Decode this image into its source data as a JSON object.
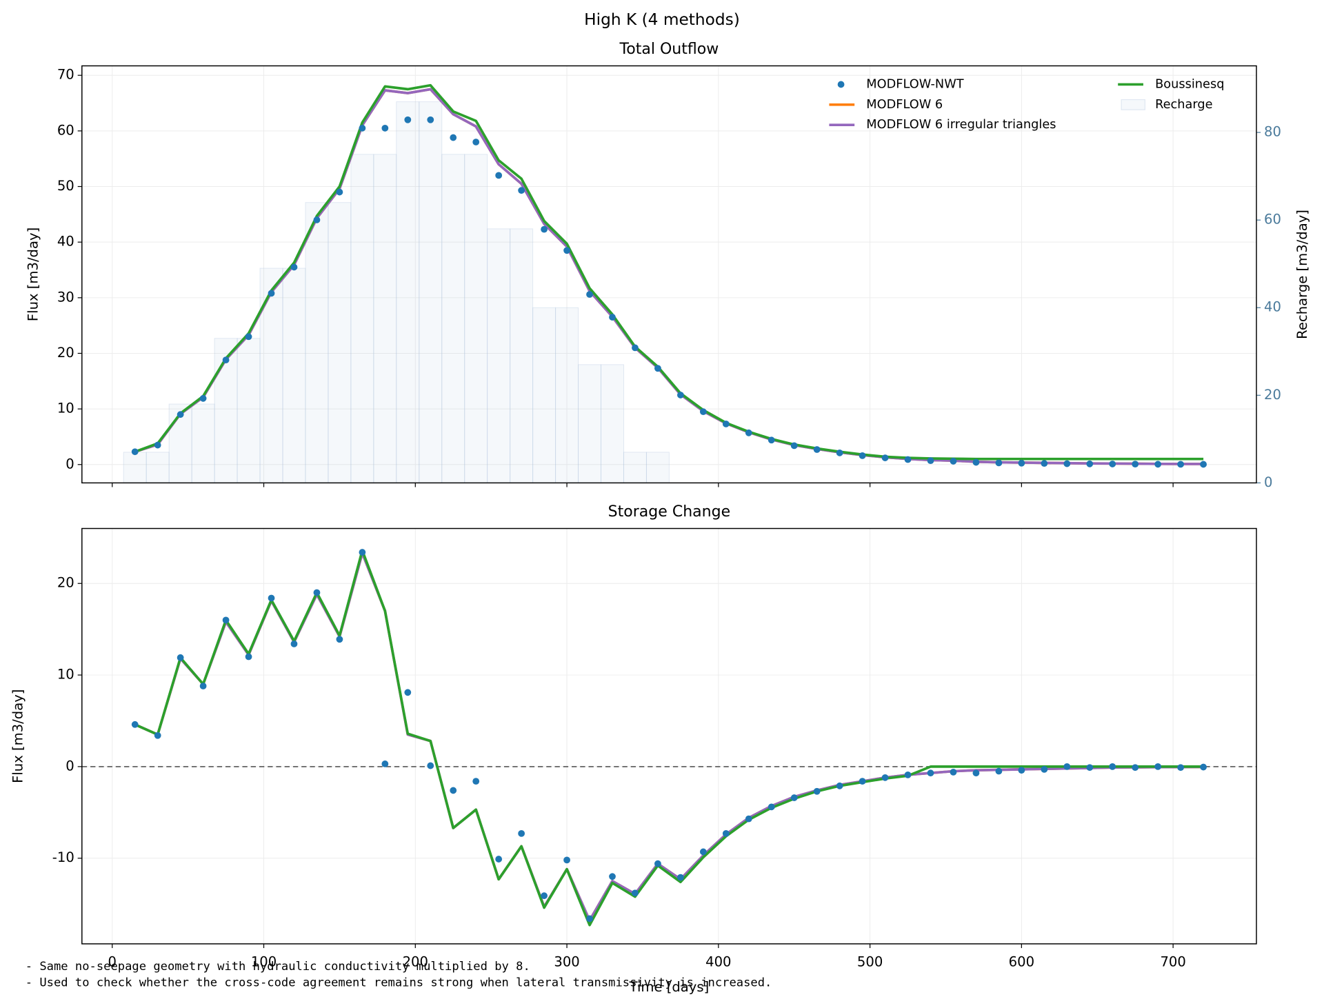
{
  "title": "High K (4 methods)",
  "notes": [
    "- Same no-seepage geometry with hydraulic conductivity multiplied by 8.",
    "- Used to check whether the cross-code agreement remains strong when lateral transmissivity is increased."
  ],
  "chart_data": [
    {
      "type": "line",
      "title": "Total Outflow",
      "ylabel": "Flux [m3/day]",
      "y2label": "Recharge [m3/day]",
      "x": [
        15,
        30,
        45,
        60,
        75,
        90,
        105,
        120,
        135,
        150,
        165,
        180,
        195,
        210,
        225,
        240,
        255,
        270,
        285,
        300,
        315,
        330,
        345,
        360,
        375,
        390,
        405,
        420,
        435,
        450,
        465,
        480,
        495,
        510,
        525,
        540,
        555,
        570,
        585,
        600,
        615,
        630,
        645,
        660,
        675,
        690,
        705,
        720
      ],
      "xlim": [
        -20,
        755
      ],
      "xticks": [
        0,
        100,
        200,
        300,
        400,
        500,
        600,
        700
      ],
      "show_xtick_labels": false,
      "ylim": [
        -3.3,
        71.7
      ],
      "yticks": [
        0,
        10,
        20,
        30,
        40,
        50,
        60,
        70
      ],
      "y2lim": [
        0,
        95.2
      ],
      "y2ticks": [
        0,
        20,
        40,
        60,
        80
      ],
      "y2color": "#4a7a9b",
      "grid": true,
      "legend": "upper right",
      "series": [
        {
          "name": "MODFLOW-NWT",
          "color": "#1f77b4",
          "style": "markers",
          "values": [
            2.3,
            3.5,
            9,
            11.9,
            18.8,
            23,
            30.8,
            35.5,
            44,
            49,
            60.5,
            60.5,
            62,
            62,
            58.8,
            58,
            52,
            49.3,
            42.3,
            38.5,
            30.6,
            26.5,
            21,
            17.3,
            12.5,
            9.5,
            7.3,
            5.7,
            4.4,
            3.4,
            2.7,
            2.1,
            1.6,
            1.2,
            0.9,
            0.7,
            0.6,
            0.4,
            0.3,
            0.25,
            0.2,
            0.15,
            0.12,
            0.1,
            0.08,
            0.06,
            0.05,
            0.04
          ]
        },
        {
          "name": "MODFLOW 6",
          "color": "#ff7f0e",
          "style": "line",
          "values": [
            2.3,
            3.6,
            9.1,
            12.1,
            18.9,
            23.3,
            31,
            35.9,
            44.3,
            49.6,
            61,
            67.3,
            66.8,
            67.5,
            63,
            60.8,
            54,
            50.5,
            43.3,
            39.2,
            31.2,
            26.6,
            21,
            17.4,
            12.6,
            9.6,
            7.4,
            5.8,
            4.5,
            3.5,
            2.8,
            2.2,
            1.7,
            1.3,
            1,
            0.8,
            0.7,
            0.5,
            0.4,
            0.35,
            0.3,
            0.25,
            0.2,
            0.18,
            0.15,
            0.12,
            0.1,
            0.1
          ]
        },
        {
          "name": "MODFLOW 6 irregular triangles",
          "color": "#9467bd",
          "style": "line",
          "values": [
            2.3,
            3.6,
            9.1,
            12.1,
            18.9,
            23.3,
            31,
            35.9,
            44.3,
            49.6,
            61,
            67.3,
            66.8,
            67.5,
            63,
            60.8,
            54,
            50.5,
            43.3,
            39.2,
            31.2,
            26.6,
            21,
            17.4,
            12.6,
            9.6,
            7.4,
            5.8,
            4.5,
            3.5,
            2.8,
            2.2,
            1.7,
            1.3,
            1,
            0.8,
            0.7,
            0.5,
            0.4,
            0.35,
            0.3,
            0.25,
            0.2,
            0.18,
            0.15,
            0.12,
            0.1,
            0.1
          ]
        },
        {
          "name": "Boussinesq",
          "color": "#2ca02c",
          "style": "line",
          "values": [
            2.3,
            3.8,
            9.2,
            12.3,
            19.1,
            23.6,
            31.3,
            36.3,
            44.7,
            50,
            61.5,
            68,
            67.5,
            68.2,
            63.5,
            61.8,
            54.7,
            51.4,
            43.8,
            39.7,
            31.7,
            27,
            21.2,
            17.6,
            12.8,
            9.8,
            7.5,
            5.9,
            4.6,
            3.6,
            2.9,
            2.3,
            1.8,
            1.4,
            1.2,
            1.1,
            1.05,
            1,
            1,
            1,
            1,
            1,
            1,
            1,
            1,
            1,
            1,
            1
          ]
        },
        {
          "name": "Recharge",
          "color": "#b0c4de",
          "style": "bar",
          "axis": "y2",
          "values": [
            7,
            7,
            18,
            18,
            33,
            33,
            49,
            49,
            64,
            64,
            75,
            75,
            87,
            87,
            75,
            75,
            58,
            58,
            40,
            40,
            27,
            27,
            7,
            7,
            0,
            0,
            0,
            0,
            0,
            0,
            0,
            0,
            0,
            0,
            0,
            0,
            0,
            0,
            0,
            0,
            0,
            0,
            0,
            0,
            0,
            0,
            0,
            0
          ]
        }
      ]
    },
    {
      "type": "line",
      "title": "Storage Change",
      "ylabel": "Flux [m3/day]",
      "xlabel": "Time [days]",
      "x": [
        15,
        30,
        45,
        60,
        75,
        90,
        105,
        120,
        135,
        150,
        165,
        180,
        195,
        210,
        225,
        240,
        255,
        270,
        285,
        300,
        315,
        330,
        345,
        360,
        375,
        390,
        405,
        420,
        435,
        450,
        465,
        480,
        495,
        510,
        525,
        540,
        555,
        570,
        585,
        600,
        615,
        630,
        645,
        660,
        675,
        690,
        705,
        720
      ],
      "xlim": [
        -20,
        755
      ],
      "xticks": [
        0,
        100,
        200,
        300,
        400,
        500,
        600,
        700
      ],
      "show_xtick_labels": true,
      "ylim": [
        -19.35,
        26
      ],
      "yticks": [
        -10,
        0,
        10,
        20
      ],
      "hline": 0,
      "grid": true,
      "series": [
        {
          "name": "MODFLOW-NWT",
          "color": "#1f77b4",
          "style": "markers",
          "values": [
            4.6,
            3.4,
            11.9,
            8.8,
            16,
            12,
            18.4,
            13.4,
            19,
            13.9,
            23.4,
            0.3,
            8.1,
            0.1,
            -2.6,
            -1.6,
            -10.1,
            -7.3,
            -14.1,
            -10.2,
            -16.6,
            -12,
            -13.8,
            -10.6,
            -12.1,
            -9.3,
            -7.3,
            -5.7,
            -4.4,
            -3.4,
            -2.7,
            -2.1,
            -1.6,
            -1.2,
            -0.9,
            -0.7,
            -0.6,
            -0.7,
            -0.5,
            -0.4,
            -0.3,
            0,
            -0.1,
            0,
            -0.1,
            0,
            -0.1,
            -0.05
          ]
        },
        {
          "name": "MODFLOW 6",
          "color": "#ff7f0e",
          "style": "line",
          "values": [
            4.6,
            3.5,
            11.8,
            9,
            15.8,
            12.2,
            18.1,
            13.6,
            18.8,
            14.2,
            23.3,
            17,
            3.5,
            2.8,
            -6.7,
            -4.7,
            -12.3,
            -8.7,
            -15.3,
            -11.2,
            -16.8,
            -12.5,
            -13.9,
            -10.6,
            -12.3,
            -9.7,
            -7.4,
            -5.6,
            -4.3,
            -3.3,
            -2.6,
            -2,
            -1.6,
            -1.2,
            -0.9,
            -0.7,
            -0.5,
            -0.4,
            -0.35,
            -0.3,
            -0.25,
            -0.2,
            -0.15,
            -0.1,
            -0.08,
            -0.06,
            -0.05,
            -0.04
          ]
        },
        {
          "name": "MODFLOW 6 irregular triangles",
          "color": "#9467bd",
          "style": "line",
          "values": [
            4.6,
            3.5,
            11.8,
            9,
            15.8,
            12.2,
            18.1,
            13.6,
            18.8,
            14.2,
            23.3,
            17,
            3.5,
            2.8,
            -6.7,
            -4.7,
            -12.3,
            -8.7,
            -15.3,
            -11.2,
            -16.8,
            -12.5,
            -13.9,
            -10.6,
            -12.3,
            -9.7,
            -7.4,
            -5.6,
            -4.3,
            -3.3,
            -2.6,
            -2,
            -1.6,
            -1.2,
            -0.9,
            -0.7,
            -0.5,
            -0.4,
            -0.35,
            -0.3,
            -0.25,
            -0.2,
            -0.15,
            -0.1,
            -0.08,
            -0.06,
            -0.05,
            -0.04
          ]
        },
        {
          "name": "Boussinesq",
          "color": "#2ca02c",
          "style": "line",
          "values": [
            4.6,
            3.5,
            11.9,
            9,
            16,
            12.3,
            18.2,
            13.7,
            19,
            14.3,
            23.6,
            17,
            3.6,
            2.8,
            -6.7,
            -4.7,
            -12.3,
            -8.7,
            -15.4,
            -11.2,
            -17.3,
            -12.7,
            -14.2,
            -10.8,
            -12.6,
            -9.9,
            -7.6,
            -5.8,
            -4.5,
            -3.5,
            -2.7,
            -2.1,
            -1.7,
            -1.3,
            -1,
            0,
            0,
            0,
            0,
            0,
            0,
            0,
            0,
            0,
            0,
            0,
            0,
            0
          ]
        }
      ]
    }
  ]
}
